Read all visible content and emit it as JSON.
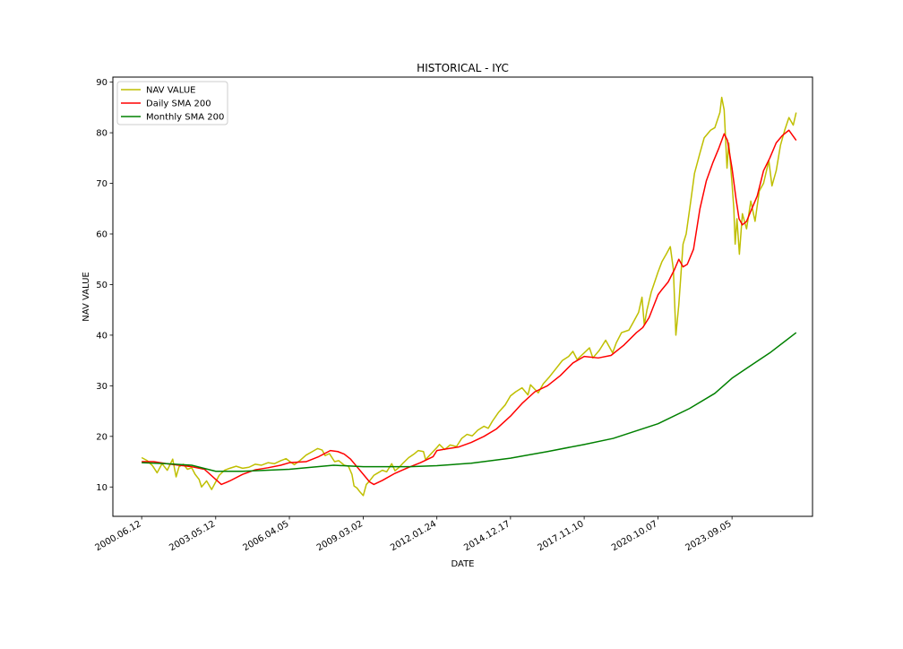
{
  "chart_data": {
    "type": "line",
    "title": "HISTORICAL - IYC",
    "xlabel": "DATE",
    "ylabel": "NAV VALUE",
    "ylim": [
      4.2,
      91
    ],
    "yticks": [
      10,
      20,
      30,
      40,
      50,
      60,
      70,
      80,
      90
    ],
    "xlim": [
      "1999-04-25",
      "2026-11-05"
    ],
    "xticks": [
      "2000.06.12",
      "2003.05.12",
      "2006.04.05",
      "2009.03.02",
      "2012.01.24",
      "2014.12.17",
      "2017.11.10",
      "2020.10.07",
      "2023.09.05"
    ],
    "grid": false,
    "legend_position": "upper left",
    "series": [
      {
        "name": "NAV VALUE",
        "color": "#bfbf00",
        "points": [
          [
            "2000-06-12",
            15.8
          ],
          [
            "2000-09-01",
            15.2
          ],
          [
            "2000-11-15",
            14.2
          ],
          [
            "2001-01-20",
            12.8
          ],
          [
            "2001-04-01",
            14.6
          ],
          [
            "2001-06-15",
            13.3
          ],
          [
            "2001-09-01",
            15.5
          ],
          [
            "2001-10-20",
            12.0
          ],
          [
            "2001-12-01",
            14.0
          ],
          [
            "2002-02-01",
            14.5
          ],
          [
            "2002-04-01",
            13.5
          ],
          [
            "2002-06-01",
            13.8
          ],
          [
            "2002-07-20",
            12.5
          ],
          [
            "2002-09-15",
            11.5
          ],
          [
            "2002-10-20",
            10.0
          ],
          [
            "2003-01-01",
            11.2
          ],
          [
            "2003-03-15",
            9.5
          ],
          [
            "2003-05-12",
            11.0
          ],
          [
            "2003-07-01",
            12.3
          ],
          [
            "2003-09-15",
            13.3
          ],
          [
            "2003-12-01",
            13.7
          ],
          [
            "2004-03-01",
            14.1
          ],
          [
            "2004-06-01",
            13.7
          ],
          [
            "2004-09-01",
            13.9
          ],
          [
            "2004-12-01",
            14.5
          ],
          [
            "2005-03-01",
            14.3
          ],
          [
            "2005-06-01",
            14.8
          ],
          [
            "2005-09-01",
            14.6
          ],
          [
            "2005-12-01",
            15.2
          ],
          [
            "2006-02-15",
            15.6
          ],
          [
            "2006-04-05",
            15.1
          ],
          [
            "2006-06-15",
            14.4
          ],
          [
            "2006-09-01",
            15.2
          ],
          [
            "2006-12-01",
            16.3
          ],
          [
            "2007-03-01",
            17.0
          ],
          [
            "2007-05-15",
            17.6
          ],
          [
            "2007-07-20",
            17.3
          ],
          [
            "2007-09-01",
            16.2
          ],
          [
            "2007-11-01",
            16.6
          ],
          [
            "2008-01-15",
            15.0
          ],
          [
            "2008-03-15",
            15.2
          ],
          [
            "2008-06-01",
            14.3
          ],
          [
            "2008-08-01",
            14.1
          ],
          [
            "2008-09-20",
            12.5
          ],
          [
            "2008-10-20",
            10.2
          ],
          [
            "2008-12-01",
            9.8
          ],
          [
            "2009-01-15",
            9.0
          ],
          [
            "2009-03-02",
            8.3
          ],
          [
            "2009-04-15",
            10.5
          ],
          [
            "2009-06-01",
            11.2
          ],
          [
            "2009-08-01",
            12.3
          ],
          [
            "2009-10-01",
            12.8
          ],
          [
            "2009-12-01",
            13.3
          ],
          [
            "2010-02-01",
            13.0
          ],
          [
            "2010-04-15",
            14.6
          ],
          [
            "2010-06-01",
            13.2
          ],
          [
            "2010-08-01",
            13.9
          ],
          [
            "2010-10-01",
            14.8
          ],
          [
            "2010-12-15",
            15.8
          ],
          [
            "2011-03-01",
            16.5
          ],
          [
            "2011-05-01",
            17.2
          ],
          [
            "2011-07-15",
            17.0
          ],
          [
            "2011-08-15",
            15.4
          ],
          [
            "2011-10-01",
            16.1
          ],
          [
            "2012-01-24",
            17.8
          ],
          [
            "2012-03-01",
            18.4
          ],
          [
            "2012-05-15",
            17.4
          ],
          [
            "2012-08-01",
            18.3
          ],
          [
            "2012-11-01",
            18.0
          ],
          [
            "2013-01-15",
            19.6
          ],
          [
            "2013-04-01",
            20.4
          ],
          [
            "2013-06-15",
            20.1
          ],
          [
            "2013-09-01",
            21.2
          ],
          [
            "2013-12-01",
            22.0
          ],
          [
            "2014-02-01",
            21.6
          ],
          [
            "2014-04-01",
            23.0
          ],
          [
            "2014-07-01",
            24.8
          ],
          [
            "2014-10-01",
            26.2
          ],
          [
            "2014-12-17",
            28.0
          ],
          [
            "2015-03-01",
            28.8
          ],
          [
            "2015-06-01",
            29.6
          ],
          [
            "2015-08-25",
            28.2
          ],
          [
            "2015-10-01",
            30.2
          ],
          [
            "2016-01-20",
            28.6
          ],
          [
            "2016-04-01",
            30.4
          ],
          [
            "2016-07-01",
            31.8
          ],
          [
            "2016-10-01",
            33.4
          ],
          [
            "2017-01-01",
            35.0
          ],
          [
            "2017-04-01",
            35.8
          ],
          [
            "2017-06-01",
            36.8
          ],
          [
            "2017-08-01",
            35.2
          ],
          [
            "2017-11-10",
            36.5
          ],
          [
            "2018-01-25",
            37.5
          ],
          [
            "2018-03-15",
            35.5
          ],
          [
            "2018-06-15",
            37.0
          ],
          [
            "2018-09-15",
            39.0
          ],
          [
            "2018-12-24",
            36.5
          ],
          [
            "2019-02-15",
            38.5
          ],
          [
            "2019-05-01",
            40.5
          ],
          [
            "2019-08-15",
            41.0
          ],
          [
            "2019-10-15",
            42.5
          ],
          [
            "2020-01-01",
            44.5
          ],
          [
            "2020-02-19",
            47.5
          ],
          [
            "2020-03-23",
            42.0
          ],
          [
            "2020-05-01",
            45.0
          ],
          [
            "2020-07-01",
            48.5
          ],
          [
            "2020-10-07",
            52.5
          ],
          [
            "2020-12-01",
            54.5
          ],
          [
            "2021-02-01",
            56.0
          ],
          [
            "2021-04-01",
            57.5
          ],
          [
            "2021-05-15",
            53.0
          ],
          [
            "2021-06-20",
            40.0
          ],
          [
            "2021-08-01",
            46.0
          ],
          [
            "2021-10-01",
            58.0
          ],
          [
            "2021-11-15",
            60.0
          ],
          [
            "2022-01-15",
            66.0
          ],
          [
            "2022-03-15",
            72.0
          ],
          [
            "2022-06-01",
            76.0
          ],
          [
            "2022-08-01",
            79.0
          ],
          [
            "2022-11-01",
            80.5
          ],
          [
            "2023-01-01",
            81.0
          ],
          [
            "2023-03-15",
            84.0
          ],
          [
            "2023-04-10",
            87.0
          ],
          [
            "2023-05-15",
            84.5
          ],
          [
            "2023-06-25",
            73.0
          ],
          [
            "2023-07-20",
            78.0
          ],
          [
            "2023-09-05",
            70.0
          ],
          [
            "2023-10-01",
            65.0
          ],
          [
            "2023-10-20",
            58.0
          ],
          [
            "2023-11-15",
            63.0
          ],
          [
            "2023-12-20",
            56.0
          ],
          [
            "2024-02-01",
            64.0
          ],
          [
            "2024-04-01",
            61.0
          ],
          [
            "2024-06-01",
            66.5
          ],
          [
            "2024-08-01",
            62.5
          ],
          [
            "2024-10-01",
            68.5
          ],
          [
            "2024-12-01",
            70.0
          ],
          [
            "2025-02-15",
            74.5
          ],
          [
            "2025-04-01",
            69.5
          ],
          [
            "2025-06-01",
            72.5
          ],
          [
            "2025-08-01",
            77.5
          ],
          [
            "2025-10-01",
            80.5
          ],
          [
            "2025-12-01",
            83.0
          ],
          [
            "2026-02-01",
            81.5
          ],
          [
            "2026-03-15",
            84.0
          ]
        ]
      },
      {
        "name": "Daily SMA 200",
        "color": "#ff0000",
        "points": [
          [
            "2000-06-12",
            15.0
          ],
          [
            "2000-12-01",
            15.0
          ],
          [
            "2001-06-01",
            14.6
          ],
          [
            "2001-12-01",
            14.3
          ],
          [
            "2002-06-01",
            14.0
          ],
          [
            "2002-12-01",
            13.5
          ],
          [
            "2003-05-12",
            11.5
          ],
          [
            "2003-08-01",
            10.5
          ],
          [
            "2003-12-01",
            11.2
          ],
          [
            "2004-06-01",
            12.5
          ],
          [
            "2004-12-01",
            13.4
          ],
          [
            "2005-06-01",
            13.8
          ],
          [
            "2005-12-01",
            14.3
          ],
          [
            "2006-04-05",
            14.8
          ],
          [
            "2006-12-01",
            15.0
          ],
          [
            "2007-06-01",
            16.0
          ],
          [
            "2007-11-15",
            17.2
          ],
          [
            "2008-03-01",
            17.0
          ],
          [
            "2008-06-01",
            16.5
          ],
          [
            "2008-09-01",
            15.5
          ],
          [
            "2008-12-01",
            14.0
          ],
          [
            "2009-03-02",
            12.5
          ],
          [
            "2009-06-01",
            11.0
          ],
          [
            "2009-08-01",
            10.5
          ],
          [
            "2009-12-01",
            11.3
          ],
          [
            "2010-06-01",
            12.7
          ],
          [
            "2010-12-01",
            13.8
          ],
          [
            "2011-06-01",
            14.8
          ],
          [
            "2011-12-01",
            16.0
          ],
          [
            "2012-01-24",
            17.2
          ],
          [
            "2012-06-01",
            17.5
          ],
          [
            "2012-12-01",
            17.9
          ],
          [
            "2013-06-01",
            18.8
          ],
          [
            "2013-12-01",
            20.0
          ],
          [
            "2014-06-01",
            21.5
          ],
          [
            "2014-12-17",
            24.0
          ],
          [
            "2015-06-01",
            26.5
          ],
          [
            "2015-12-01",
            28.8
          ],
          [
            "2016-06-01",
            30.0
          ],
          [
            "2016-12-01",
            32.0
          ],
          [
            "2017-06-01",
            34.5
          ],
          [
            "2017-11-10",
            35.8
          ],
          [
            "2018-06-01",
            35.5
          ],
          [
            "2018-12-01",
            36.0
          ],
          [
            "2019-06-01",
            38.0
          ],
          [
            "2019-12-01",
            40.5
          ],
          [
            "2020-03-01",
            41.5
          ],
          [
            "2020-06-01",
            43.5
          ],
          [
            "2020-10-07",
            48.0
          ],
          [
            "2020-12-01",
            49.0
          ],
          [
            "2021-03-01",
            50.5
          ],
          [
            "2021-06-01",
            53.0
          ],
          [
            "2021-08-01",
            55.0
          ],
          [
            "2021-10-01",
            53.5
          ],
          [
            "2021-12-01",
            54.0
          ],
          [
            "2022-03-01",
            57.0
          ],
          [
            "2022-06-01",
            65.0
          ],
          [
            "2022-09-01",
            70.5
          ],
          [
            "2022-12-01",
            74.0
          ],
          [
            "2023-03-01",
            77.0
          ],
          [
            "2023-05-15",
            79.8
          ],
          [
            "2023-07-01",
            78.5
          ],
          [
            "2023-09-05",
            73.0
          ],
          [
            "2023-11-01",
            67.0
          ],
          [
            "2023-12-15",
            63.0
          ],
          [
            "2024-02-01",
            61.8
          ],
          [
            "2024-04-01",
            62.5
          ],
          [
            "2024-06-01",
            64.5
          ],
          [
            "2024-09-01",
            67.5
          ],
          [
            "2024-12-01",
            72.5
          ],
          [
            "2025-03-01",
            75.0
          ],
          [
            "2025-06-01",
            78.0
          ],
          [
            "2025-09-01",
            79.5
          ],
          [
            "2025-12-01",
            80.5
          ],
          [
            "2026-03-15",
            78.5
          ]
        ]
      },
      {
        "name": "Monthly SMA 200",
        "color": "#008000",
        "points": [
          [
            "2000-06-12",
            14.8
          ],
          [
            "2001-06-01",
            14.6
          ],
          [
            "2002-06-01",
            14.3
          ],
          [
            "2003-05-12",
            13.1
          ],
          [
            "2004-06-01",
            13.1
          ],
          [
            "2006-04-05",
            13.5
          ],
          [
            "2008-01-01",
            14.3
          ],
          [
            "2009-03-02",
            14.0
          ],
          [
            "2011-01-01",
            14.0
          ],
          [
            "2012-01-24",
            14.2
          ],
          [
            "2013-06-01",
            14.7
          ],
          [
            "2014-12-17",
            15.7
          ],
          [
            "2016-06-01",
            17.0
          ],
          [
            "2017-11-10",
            18.4
          ],
          [
            "2019-01-01",
            19.6
          ],
          [
            "2020-10-07",
            22.5
          ],
          [
            "2022-01-01",
            25.5
          ],
          [
            "2023-01-01",
            28.5
          ],
          [
            "2023-09-05",
            31.5
          ],
          [
            "2024-06-01",
            34.0
          ],
          [
            "2025-03-01",
            36.5
          ],
          [
            "2026-03-15",
            40.5
          ]
        ]
      }
    ]
  }
}
